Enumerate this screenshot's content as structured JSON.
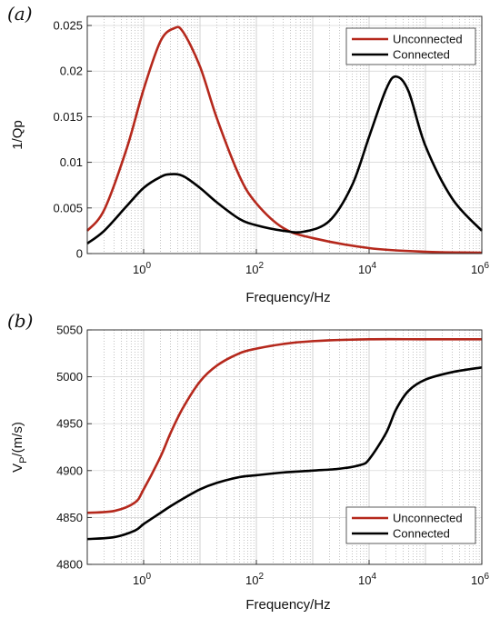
{
  "chart_data": [
    {
      "type": "line",
      "panel_label": "(a)",
      "xlabel": "Frequency/Hz",
      "ylabel": "1/Qp",
      "xscale": "log",
      "xlim": [
        0.1,
        1000000
      ],
      "ylim": [
        0,
        0.026
      ],
      "xticks": [
        {
          "value": 1,
          "base": "10",
          "exp": "0"
        },
        {
          "value": 100,
          "base": "10",
          "exp": "2"
        },
        {
          "value": 10000,
          "base": "10",
          "exp": "4"
        },
        {
          "value": 1000000,
          "base": "10",
          "exp": "6"
        }
      ],
      "yticks": [
        {
          "value": 0,
          "label": "0"
        },
        {
          "value": 0.005,
          "label": "0.005"
        },
        {
          "value": 0.01,
          "label": "0.01"
        },
        {
          "value": 0.015,
          "label": "0.015"
        },
        {
          "value": 0.02,
          "label": "0.02"
        },
        {
          "value": 0.025,
          "label": "0.025"
        }
      ],
      "grid": true,
      "legend_position": "top-right",
      "series": [
        {
          "name": "Unconnected",
          "color": "#b5281c",
          "x": [
            0.1,
            0.2,
            0.5,
            1,
            2,
            3.5,
            5,
            10,
            20,
            50,
            100,
            300,
            1000,
            10000,
            100000,
            1000000
          ],
          "y": [
            0.0025,
            0.0048,
            0.0115,
            0.018,
            0.0233,
            0.0247,
            0.0243,
            0.0205,
            0.0148,
            0.0085,
            0.0055,
            0.0028,
            0.0017,
            0.0006,
            0.0002,
            0.0001
          ]
        },
        {
          "name": "Connected",
          "color": "#000000",
          "x": [
            0.1,
            0.2,
            0.5,
            1,
            2,
            3,
            5,
            10,
            20,
            50,
            100,
            300,
            700,
            2000,
            5000,
            10000,
            20000,
            30000,
            50000,
            100000,
            300000,
            1000000
          ],
          "y": [
            0.0011,
            0.0025,
            0.0052,
            0.0072,
            0.0084,
            0.0087,
            0.0085,
            0.0072,
            0.0056,
            0.0038,
            0.0031,
            0.0025,
            0.0024,
            0.0036,
            0.0075,
            0.0128,
            0.018,
            0.0194,
            0.0178,
            0.0118,
            0.006,
            0.0025
          ]
        }
      ]
    },
    {
      "type": "line",
      "panel_label": "(b)",
      "xlabel": "Frequency/Hz",
      "ylabel_main": "V",
      "ylabel_sub": "P",
      "ylabel_tail": "/(m/s)",
      "xscale": "log",
      "xlim": [
        0.1,
        1000000
      ],
      "ylim": [
        4800,
        5050
      ],
      "xticks": [
        {
          "value": 1,
          "base": "10",
          "exp": "0"
        },
        {
          "value": 100,
          "base": "10",
          "exp": "2"
        },
        {
          "value": 10000,
          "base": "10",
          "exp": "4"
        },
        {
          "value": 1000000,
          "base": "10",
          "exp": "6"
        }
      ],
      "yticks": [
        {
          "value": 4800,
          "label": "4800"
        },
        {
          "value": 4850,
          "label": "4850"
        },
        {
          "value": 4900,
          "label": "4900"
        },
        {
          "value": 4950,
          "label": "4950"
        },
        {
          "value": 5000,
          "label": "5000"
        },
        {
          "value": 5050,
          "label": "5050"
        }
      ],
      "grid": true,
      "legend_position": "bottom-right",
      "series": [
        {
          "name": "Unconnected",
          "color": "#b5281c",
          "x": [
            0.1,
            0.3,
            0.7,
            1,
            2,
            3,
            5,
            10,
            20,
            50,
            100,
            300,
            1000,
            10000,
            100000,
            1000000
          ],
          "y": [
            4855,
            4857,
            4866,
            4880,
            4915,
            4940,
            4967,
            4995,
            5012,
            5025,
            5030,
            5035,
            5038,
            5040,
            5040,
            5040
          ]
        },
        {
          "name": "Connected",
          "color": "#000000",
          "x": [
            0.1,
            0.3,
            0.7,
            1,
            2,
            3,
            5,
            10,
            20,
            50,
            100,
            300,
            1000,
            3000,
            7000,
            10000,
            20000,
            30000,
            50000,
            100000,
            300000,
            1000000
          ],
          "y": [
            4827,
            4829,
            4836,
            4843,
            4855,
            4862,
            4870,
            4880,
            4887,
            4893,
            4895,
            4898,
            4900,
            4902,
            4906,
            4912,
            4940,
            4965,
            4985,
            4997,
            5005,
            5010
          ]
        }
      ]
    }
  ]
}
